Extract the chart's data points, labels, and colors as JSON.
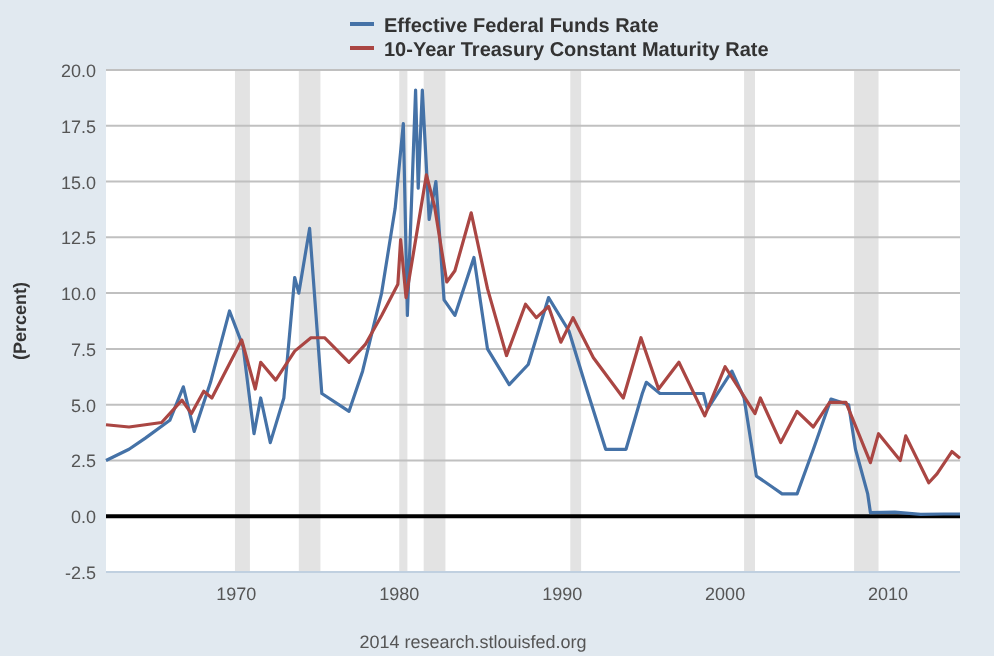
{
  "chart_data": {
    "type": "line",
    "ylabel": "(Percent)",
    "legend": "top",
    "grid": "y",
    "line_style": "solid",
    "marker": "none",
    "xlim": [
      "1962-01",
      "2014-06"
    ],
    "xticks": [
      "1970",
      "1980",
      "1990",
      "2000",
      "2010"
    ],
    "ylim": [
      -2.5,
      20
    ],
    "yticks": [
      {
        "value": -2.5,
        "label": "-2.5"
      },
      {
        "value": 0,
        "label": "0.0"
      },
      {
        "value": 2.5,
        "label": "2.5"
      },
      {
        "value": 5,
        "label": "5.0"
      },
      {
        "value": 7.5,
        "label": "7.5"
      },
      {
        "value": 10,
        "label": "10.0"
      },
      {
        "value": 12.5,
        "label": "12.5"
      },
      {
        "value": 15,
        "label": "15.0"
      },
      {
        "value": 17.5,
        "label": "17.5"
      },
      {
        "value": 20,
        "label": "20.0"
      }
    ],
    "bands": [
      {
        "axis": "x",
        "from": "1969-12",
        "to": "1970-11",
        "color": "#e3e3e3"
      },
      {
        "axis": "x",
        "from": "1973-11",
        "to": "1975-03",
        "color": "#e3e3e3"
      },
      {
        "axis": "x",
        "from": "1980-01",
        "to": "1980-07",
        "color": "#e3e3e3"
      },
      {
        "axis": "x",
        "from": "1981-07",
        "to": "1982-11",
        "color": "#e3e3e3"
      },
      {
        "axis": "x",
        "from": "1990-07",
        "to": "1991-03",
        "color": "#e3e3e3"
      },
      {
        "axis": "x",
        "from": "2001-03",
        "to": "2001-11",
        "color": "#e3e3e3"
      },
      {
        "axis": "x",
        "from": "2007-12",
        "to": "2009-06",
        "color": "#e3e3e3"
      }
    ],
    "ref_lines": [
      {
        "axis": "y",
        "value": 0,
        "color": "#000000"
      }
    ],
    "annotations": [
      "2014 research.stlouisfed.org"
    ],
    "series": [
      {
        "name": "Effective Federal Funds Rate",
        "color": "#4572a7",
        "x": [
          "1962-01",
          "1963-06",
          "1964-06",
          "1965-12",
          "1966-10",
          "1967-06",
          "1968-06",
          "1969-08",
          "1970-06",
          "1971-02",
          "1971-07",
          "1972-02",
          "1972-12",
          "1973-08",
          "1973-11",
          "1974-07",
          "1975-04",
          "1976-12",
          "1977-10",
          "1978-12",
          "1979-10",
          "1980-04",
          "1980-07",
          "1981-01",
          "1981-03",
          "1981-06",
          "1981-11",
          "1982-04",
          "1982-10",
          "1983-06",
          "1984-08",
          "1985-06",
          "1986-10",
          "1987-12",
          "1989-03",
          "1990-06",
          "1991-06",
          "1992-09",
          "1993-12",
          "1994-12",
          "1995-03",
          "1996-01",
          "1998-09",
          "1998-12",
          "2000-06",
          "2001-03",
          "2001-12",
          "2002-12",
          "2003-07",
          "2004-06",
          "2005-06",
          "2006-07",
          "2007-08",
          "2008-01",
          "2008-10",
          "2008-12",
          "2010-06",
          "2012-01",
          "2013-06",
          "2014-06"
        ],
        "values": [
          2.5,
          3.0,
          3.5,
          4.3,
          5.8,
          3.8,
          6.0,
          9.2,
          7.6,
          3.7,
          5.3,
          3.3,
          5.3,
          10.7,
          10.0,
          12.9,
          5.5,
          4.7,
          6.5,
          10.0,
          13.8,
          17.6,
          9.0,
          19.1,
          14.7,
          19.1,
          13.3,
          15.0,
          9.7,
          9.0,
          11.6,
          7.5,
          5.9,
          6.8,
          9.8,
          8.3,
          5.9,
          3.0,
          3.0,
          5.5,
          6.0,
          5.5,
          5.5,
          4.8,
          6.5,
          5.3,
          1.8,
          1.3,
          1.0,
          1.0,
          3.0,
          5.25,
          5.0,
          3.0,
          1.0,
          0.16,
          0.18,
          0.08,
          0.1,
          0.1
        ]
      },
      {
        "name": "10-Year Treasury Constant Maturity Rate",
        "color": "#aa4643",
        "x": [
          "1962-01",
          "1963-06",
          "1965-06",
          "1966-09",
          "1967-04",
          "1968-01",
          "1968-07",
          "1970-05",
          "1971-03",
          "1971-07",
          "1972-06",
          "1973-08",
          "1974-08",
          "1975-06",
          "1976-12",
          "1977-12",
          "1978-12",
          "1979-12",
          "1980-02",
          "1980-06",
          "1981-09",
          "1982-03",
          "1982-12",
          "1983-06",
          "1984-06",
          "1985-06",
          "1986-08",
          "1987-10",
          "1988-06",
          "1989-03",
          "1989-12",
          "1990-09",
          "1991-12",
          "1993-10",
          "1994-11",
          "1995-12",
          "1997-03",
          "1998-10",
          "2000-01",
          "2001-11",
          "2002-03",
          "2003-06",
          "2004-06",
          "2005-06",
          "2006-06",
          "2007-06",
          "2008-12",
          "2009-06",
          "2010-10",
          "2011-02",
          "2012-07",
          "2013-01",
          "2013-12",
          "2014-06"
        ],
        "values": [
          4.1,
          4.0,
          4.2,
          5.2,
          4.6,
          5.6,
          5.3,
          7.9,
          5.7,
          6.9,
          6.1,
          7.4,
          8.0,
          8.0,
          6.9,
          7.7,
          9.0,
          10.4,
          12.4,
          9.8,
          15.3,
          13.9,
          10.5,
          11.0,
          13.6,
          10.2,
          7.2,
          9.5,
          8.9,
          9.4,
          7.8,
          8.9,
          7.1,
          5.3,
          8.0,
          5.7,
          6.9,
          4.5,
          6.7,
          4.6,
          5.3,
          3.3,
          4.7,
          4.0,
          5.1,
          5.1,
          2.4,
          3.7,
          2.5,
          3.6,
          1.5,
          1.9,
          2.9,
          2.6
        ]
      }
    ]
  }
}
